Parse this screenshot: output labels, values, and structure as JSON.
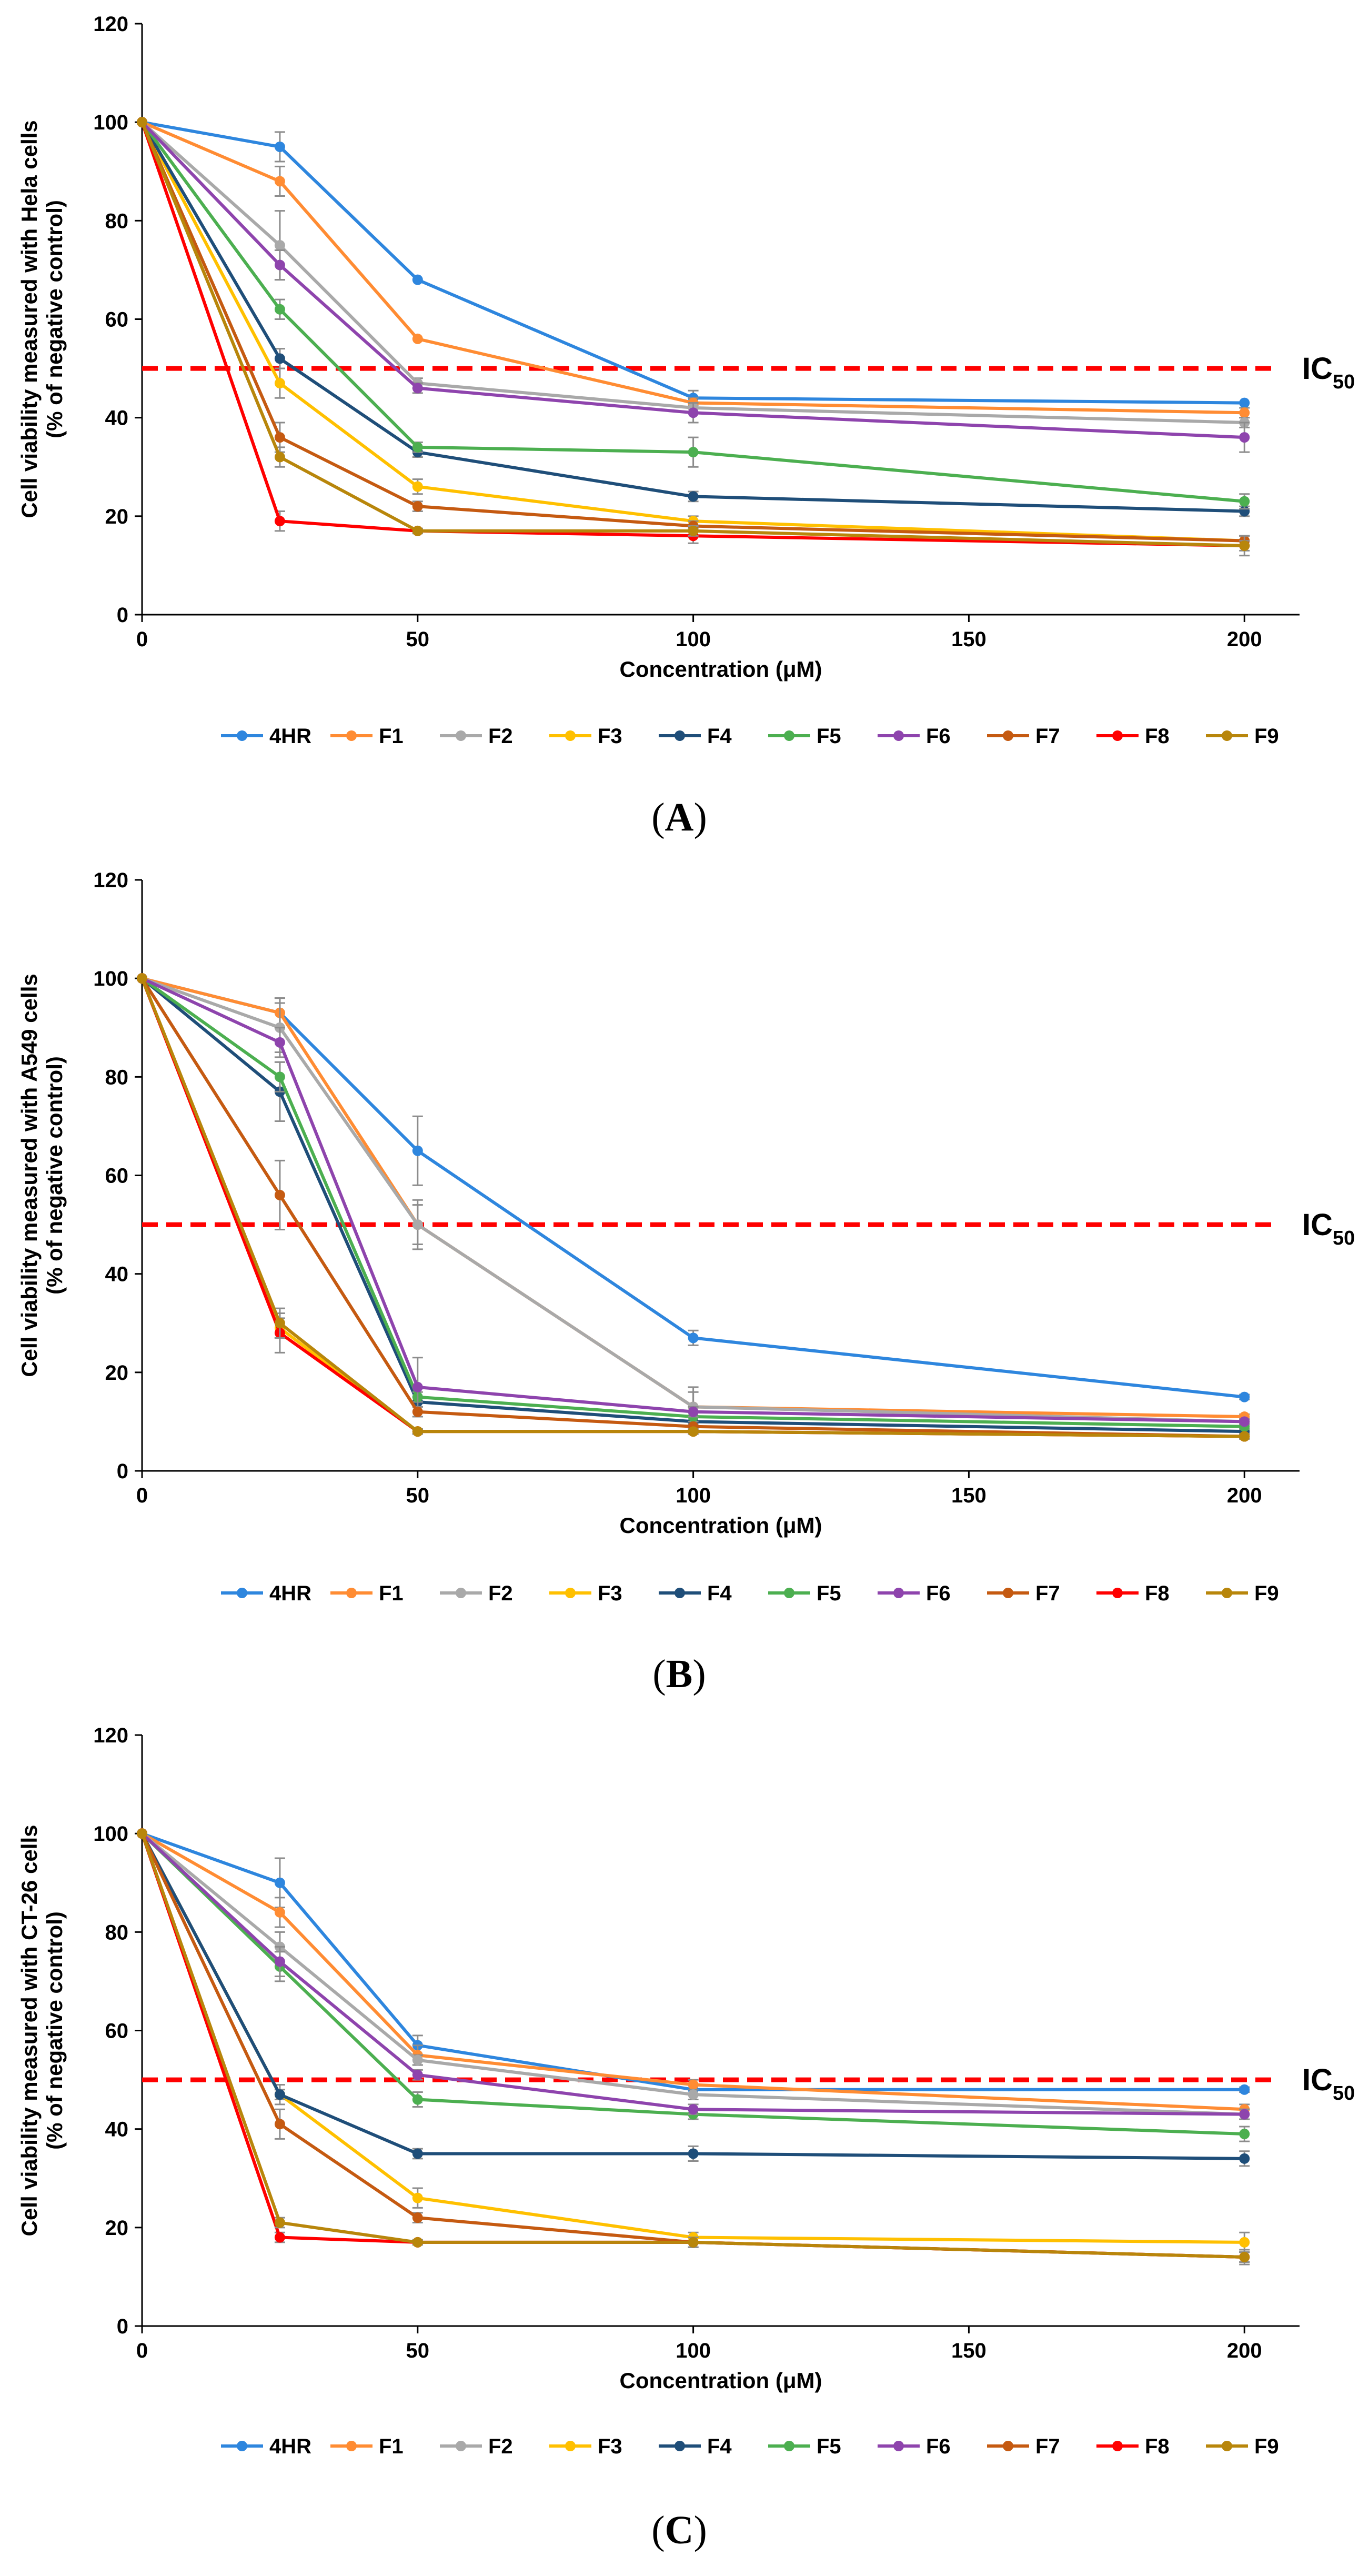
{
  "chart_data": [
    {
      "type": "line",
      "panel": "A",
      "panel_label": {
        "open": "(",
        "letter": "A",
        "close": ")"
      },
      "title": "",
      "xlabel": "Concentration (μM)",
      "ylabel": [
        "Cell viability measured with Hela cells",
        "(% of negative control)"
      ],
      "xlim": [
        0,
        210
      ],
      "ylim": [
        0,
        120
      ],
      "xticks": [
        0,
        50,
        100,
        150,
        200
      ],
      "yticks": [
        0,
        20,
        40,
        60,
        80,
        100,
        120
      ],
      "grid": false,
      "legend_position": "bottom",
      "x": [
        0,
        25,
        50,
        100,
        200
      ],
      "reference_line": {
        "y": 50,
        "label_main": "IC",
        "label_sub": "50",
        "color": "#ff0000"
      },
      "series": [
        {
          "name": "4HR",
          "color": "#2e86de",
          "values": [
            100,
            95,
            68,
            44,
            43
          ],
          "errors": [
            0,
            3,
            0,
            1.5,
            0
          ]
        },
        {
          "name": "F1",
          "color": "#ff8c33",
          "values": [
            100,
            88,
            56,
            43,
            41
          ],
          "errors": [
            0,
            3,
            0,
            1,
            1
          ]
        },
        {
          "name": "F2",
          "color": "#a9a9a9",
          "values": [
            100,
            75,
            47,
            42,
            39
          ],
          "errors": [
            0,
            7,
            1,
            1,
            1
          ]
        },
        {
          "name": "F3",
          "color": "#ffc000",
          "values": [
            100,
            47,
            26,
            19,
            15
          ],
          "errors": [
            0,
            3,
            1.5,
            1,
            1
          ]
        },
        {
          "name": "F4",
          "color": "#1f4e79",
          "values": [
            100,
            52,
            33,
            24,
            21
          ],
          "errors": [
            0,
            2,
            1,
            1,
            1
          ]
        },
        {
          "name": "F5",
          "color": "#4caf50",
          "values": [
            100,
            62,
            34,
            33,
            23
          ],
          "errors": [
            0,
            2,
            1,
            3,
            1.5
          ]
        },
        {
          "name": "F6",
          "color": "#8e44ad",
          "values": [
            100,
            71,
            46,
            41,
            36
          ],
          "errors": [
            0,
            3,
            1,
            2,
            3
          ]
        },
        {
          "name": "F7",
          "color": "#c55a11",
          "values": [
            100,
            36,
            22,
            18,
            15
          ],
          "errors": [
            0,
            3,
            1,
            1,
            1
          ]
        },
        {
          "name": "F8",
          "color": "#ff0000",
          "values": [
            100,
            19,
            17,
            16,
            14
          ],
          "errors": [
            0,
            2,
            0.5,
            1.5,
            2
          ]
        },
        {
          "name": "F9",
          "color": "#b8860b",
          "values": [
            100,
            32,
            17,
            17,
            14
          ],
          "errors": [
            0,
            2,
            0.5,
            1,
            1
          ]
        }
      ]
    },
    {
      "type": "line",
      "panel": "B",
      "panel_label": {
        "open": "(",
        "letter": "B",
        "close": ")"
      },
      "title": "",
      "xlabel": "Concentration (μM)",
      "ylabel": [
        "Cell viability measured with A549 cells",
        "(% of negative control)"
      ],
      "xlim": [
        0,
        210
      ],
      "ylim": [
        0,
        120
      ],
      "xticks": [
        0,
        50,
        100,
        150,
        200
      ],
      "yticks": [
        0,
        20,
        40,
        60,
        80,
        100,
        120
      ],
      "grid": false,
      "legend_position": "bottom",
      "x": [
        0,
        25,
        50,
        100,
        200
      ],
      "reference_line": {
        "y": 50,
        "label_main": "IC",
        "label_sub": "50",
        "color": "#ff0000"
      },
      "series": [
        {
          "name": "4HR",
          "color": "#2e86de",
          "values": [
            100,
            93,
            65,
            27,
            15
          ],
          "errors": [
            0,
            3,
            7,
            1.5,
            0.5
          ]
        },
        {
          "name": "F1",
          "color": "#ff8c33",
          "values": [
            100,
            93,
            50,
            13,
            11
          ],
          "errors": [
            0,
            3,
            4,
            3,
            0.5
          ]
        },
        {
          "name": "F2",
          "color": "#a9a9a9",
          "values": [
            100,
            90,
            50,
            13,
            10
          ],
          "errors": [
            0,
            5,
            5,
            4,
            0.5
          ]
        },
        {
          "name": "F3",
          "color": "#ffc000",
          "values": [
            100,
            29,
            8,
            8,
            7
          ],
          "errors": [
            0,
            2,
            0.5,
            0.5,
            0.5
          ]
        },
        {
          "name": "F4",
          "color": "#1f4e79",
          "values": [
            100,
            77,
            14,
            10,
            8
          ],
          "errors": [
            0,
            6,
            1,
            1,
            0.5
          ]
        },
        {
          "name": "F5",
          "color": "#4caf50",
          "values": [
            100,
            80,
            15,
            11,
            9
          ],
          "errors": [
            0,
            3,
            1,
            1,
            0.5
          ]
        },
        {
          "name": "F6",
          "color": "#8e44ad",
          "values": [
            100,
            87,
            17,
            12,
            10
          ],
          "errors": [
            0,
            3,
            6,
            1,
            0.5
          ]
        },
        {
          "name": "F7",
          "color": "#c55a11",
          "values": [
            100,
            56,
            12,
            9,
            7
          ],
          "errors": [
            0,
            7,
            1,
            0.5,
            0.5
          ]
        },
        {
          "name": "F8",
          "color": "#ff0000",
          "values": [
            100,
            28,
            8,
            8,
            7
          ],
          "errors": [
            0,
            4,
            0.5,
            0.5,
            0.5
          ]
        },
        {
          "name": "F9",
          "color": "#b8860b",
          "values": [
            100,
            30,
            8,
            8,
            7
          ],
          "errors": [
            0,
            3,
            0.5,
            0.5,
            0.5
          ]
        }
      ]
    },
    {
      "type": "line",
      "panel": "C",
      "panel_label": {
        "open": "(",
        "letter": "C",
        "close": ")"
      },
      "title": "",
      "xlabel": "Concentration (μM)",
      "ylabel": [
        "Cell viability measured with CT-26 cells",
        "(% of negative control)"
      ],
      "xlim": [
        0,
        210
      ],
      "ylim": [
        0,
        120
      ],
      "xticks": [
        0,
        50,
        100,
        150,
        200
      ],
      "yticks": [
        0,
        20,
        40,
        60,
        80,
        100,
        120
      ],
      "grid": false,
      "legend_position": "bottom",
      "x": [
        0,
        25,
        50,
        100,
        200
      ],
      "reference_line": {
        "y": 50,
        "label_main": "IC",
        "label_sub": "50",
        "color": "#ff0000"
      },
      "series": [
        {
          "name": "4HR",
          "color": "#2e86de",
          "values": [
            100,
            90,
            57,
            48,
            48
          ],
          "errors": [
            0,
            5,
            2,
            1,
            0.5
          ]
        },
        {
          "name": "F1",
          "color": "#ff8c33",
          "values": [
            100,
            84,
            55,
            49,
            44
          ],
          "errors": [
            0,
            3,
            2,
            1,
            1
          ]
        },
        {
          "name": "F2",
          "color": "#a9a9a9",
          "values": [
            100,
            77,
            54,
            47,
            43
          ],
          "errors": [
            0,
            3,
            1,
            1,
            1
          ]
        },
        {
          "name": "F3",
          "color": "#ffc000",
          "values": [
            100,
            47,
            26,
            18,
            17
          ],
          "errors": [
            0,
            2,
            2,
            1,
            2
          ]
        },
        {
          "name": "F4",
          "color": "#1f4e79",
          "values": [
            100,
            47,
            35,
            35,
            34
          ],
          "errors": [
            0,
            1,
            1,
            1.5,
            1.5
          ]
        },
        {
          "name": "F5",
          "color": "#4caf50",
          "values": [
            100,
            73,
            46,
            43,
            39
          ],
          "errors": [
            0,
            3,
            1.5,
            1,
            1.5
          ]
        },
        {
          "name": "F6",
          "color": "#8e44ad",
          "values": [
            100,
            74,
            51,
            44,
            43
          ],
          "errors": [
            0,
            3,
            1,
            1,
            1
          ]
        },
        {
          "name": "F7",
          "color": "#c55a11",
          "values": [
            100,
            41,
            22,
            17,
            14
          ],
          "errors": [
            0,
            3,
            1,
            1,
            1
          ]
        },
        {
          "name": "F8",
          "color": "#ff0000",
          "values": [
            100,
            18,
            17,
            17,
            14
          ],
          "errors": [
            0,
            1,
            0.5,
            1,
            1.5
          ]
        },
        {
          "name": "F9",
          "color": "#b8860b",
          "values": [
            100,
            21,
            17,
            17,
            14
          ],
          "errors": [
            0,
            1,
            0.5,
            1,
            1
          ]
        }
      ]
    }
  ]
}
